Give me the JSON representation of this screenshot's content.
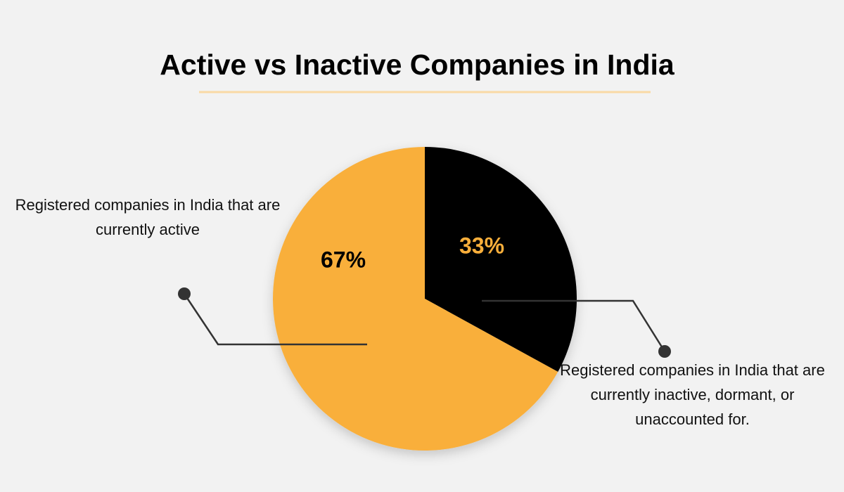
{
  "chart_data": {
    "type": "pie",
    "title": "Active vs Inactive Companies in India",
    "categories": [
      "Registered companies in India that are currently inactive, dormant, or unaccounted for.",
      "Registered companies in India that are currently active"
    ],
    "values": [
      33,
      67
    ],
    "value_labels": [
      "33%",
      "67%"
    ],
    "colors": [
      "#000000",
      "#F9AF3B"
    ]
  }
}
